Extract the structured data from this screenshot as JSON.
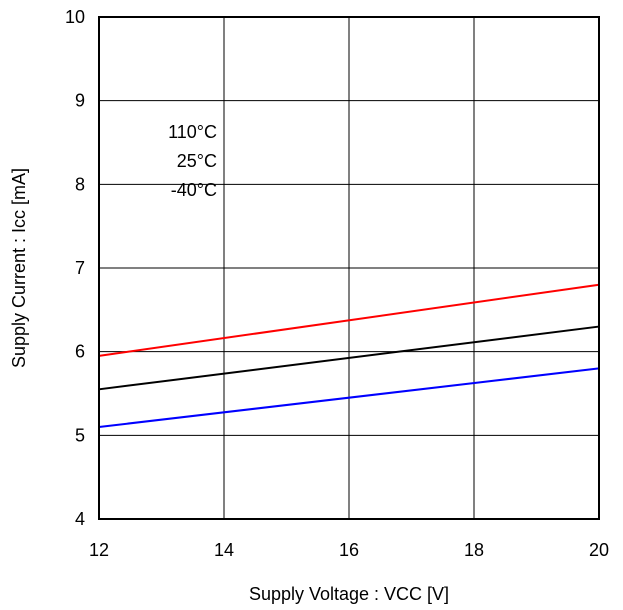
{
  "chart_data": {
    "type": "line",
    "title": "",
    "xlabel": "Supply Voltage : VCC [V]",
    "ylabel": "Supply Current : Icc [mA]",
    "xlim": [
      12,
      20
    ],
    "ylim": [
      4,
      10
    ],
    "xticks": [
      "12",
      "14",
      "16",
      "18",
      "20"
    ],
    "yticks": [
      "4",
      "5",
      "6",
      "7",
      "8",
      "9",
      "10"
    ],
    "grid": true,
    "legend_position": "top-left",
    "series": [
      {
        "name": "110°C",
        "color": "#ff0000",
        "x": [
          12,
          20
        ],
        "y": [
          5.95,
          6.8
        ]
      },
      {
        "name": "25°C",
        "color": "#000000",
        "x": [
          12,
          20
        ],
        "y": [
          5.55,
          6.3
        ]
      },
      {
        "name": "-40°C",
        "color": "#0000ff",
        "x": [
          12,
          20
        ],
        "y": [
          5.1,
          5.8
        ]
      }
    ]
  }
}
